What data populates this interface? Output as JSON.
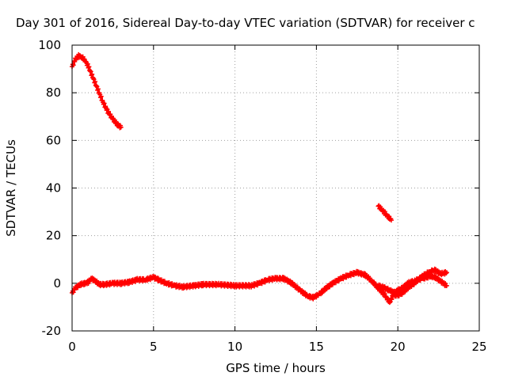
{
  "chart_data": {
    "type": "scatter",
    "title": "Day 301 of 2016, Sidereal Day-to-day VTEC variation (SDTVAR) for receiver c",
    "xlabel": "GPS time / hours",
    "ylabel": "SDTVAR / TECUs",
    "xlim": [
      0,
      25
    ],
    "ylim": [
      -20,
      100
    ],
    "xticks": [
      0,
      5,
      10,
      15,
      20,
      25
    ],
    "yticks": [
      -20,
      0,
      20,
      40,
      60,
      80,
      100
    ],
    "grid": true,
    "legend": "none",
    "series": [
      {
        "color": "#ff0000",
        "marker": "plus",
        "segments": [
          [
            [
              0.0,
              91
            ],
            [
              0.2,
              94
            ],
            [
              0.4,
              95.5
            ],
            [
              0.6,
              95
            ],
            [
              0.8,
              93.5
            ],
            [
              1.0,
              91
            ],
            [
              1.3,
              86
            ],
            [
              1.6,
              81
            ],
            [
              1.9,
              76
            ],
            [
              2.2,
              72
            ],
            [
              2.5,
              69
            ],
            [
              2.8,
              66.5
            ],
            [
              3.0,
              65.5
            ]
          ],
          [
            [
              18.8,
              32.5
            ],
            [
              19.0,
              31
            ],
            [
              19.2,
              29.5
            ],
            [
              19.4,
              28
            ],
            [
              19.6,
              26.5
            ]
          ],
          [
            [
              0.0,
              -4
            ],
            [
              0.2,
              -2
            ],
            [
              0.5,
              -0.5
            ],
            [
              0.8,
              0
            ],
            [
              1.0,
              0.5
            ],
            [
              1.2,
              2
            ],
            [
              1.4,
              1
            ],
            [
              1.7,
              -0.5
            ],
            [
              2.0,
              -0.5
            ],
            [
              2.5,
              0
            ],
            [
              3.0,
              0
            ],
            [
              3.5,
              0.5
            ],
            [
              4.0,
              1.5
            ],
            [
              4.5,
              1.5
            ],
            [
              5.0,
              2.5
            ],
            [
              5.3,
              1.5
            ],
            [
              5.8,
              0
            ],
            [
              6.3,
              -1
            ],
            [
              6.8,
              -1.5
            ],
            [
              7.5,
              -1
            ],
            [
              8.0,
              -0.5
            ],
            [
              9.0,
              -0.5
            ],
            [
              10.0,
              -1
            ],
            [
              11.0,
              -1
            ],
            [
              11.5,
              0
            ],
            [
              12.0,
              1.5
            ],
            [
              12.5,
              2
            ],
            [
              13.0,
              2
            ],
            [
              13.5,
              0
            ],
            [
              14.0,
              -3
            ],
            [
              14.5,
              -5.5
            ],
            [
              14.8,
              -6
            ],
            [
              15.2,
              -4.5
            ],
            [
              15.6,
              -2
            ],
            [
              16.0,
              0
            ],
            [
              16.5,
              2
            ],
            [
              17.0,
              3.5
            ],
            [
              17.5,
              4.5
            ],
            [
              18.0,
              3.5
            ],
            [
              18.4,
              1
            ],
            [
              18.8,
              -2
            ],
            [
              19.2,
              -5
            ],
            [
              19.5,
              -8
            ],
            [
              19.7,
              -5
            ],
            [
              20.0,
              -5
            ],
            [
              20.3,
              -4
            ],
            [
              20.6,
              -2
            ],
            [
              21.0,
              0
            ],
            [
              21.5,
              3
            ],
            [
              22.0,
              5
            ],
            [
              22.3,
              5.5
            ],
            [
              22.6,
              4
            ],
            [
              23.0,
              4.5
            ]
          ],
          [
            [
              18.8,
              -1
            ],
            [
              19.2,
              -2
            ],
            [
              19.5,
              -3
            ],
            [
              19.8,
              -4
            ],
            [
              20.0,
              -3
            ],
            [
              20.3,
              -2
            ],
            [
              20.6,
              0
            ],
            [
              21.0,
              1
            ],
            [
              21.5,
              2
            ],
            [
              22.0,
              3
            ],
            [
              22.3,
              2.5
            ],
            [
              22.6,
              1
            ],
            [
              23.0,
              -1
            ]
          ]
        ]
      }
    ]
  }
}
